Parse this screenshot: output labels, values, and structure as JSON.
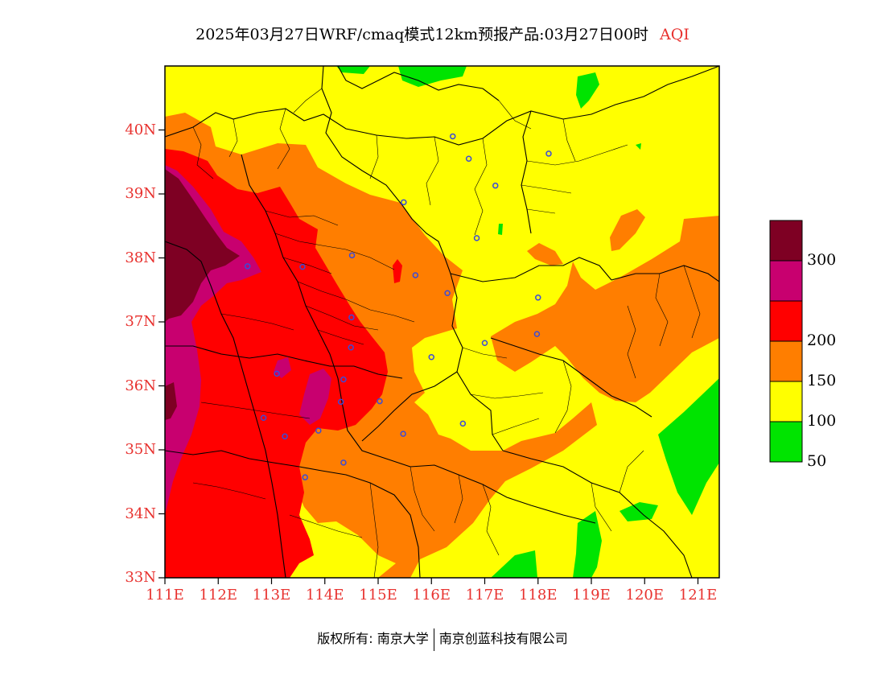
{
  "title": {
    "main": "2025年03月27日WRF/cmaq模式12km预报产品:03月27日00时",
    "variable": "AQI"
  },
  "map": {
    "lat_min": 33,
    "lat_max": 41,
    "lon_min": 111,
    "lon_max": 121.4,
    "lat_labels": [
      "40N",
      "39N",
      "38N",
      "37N",
      "36N",
      "35N",
      "34N",
      "33N"
    ],
    "lon_labels": [
      "111E",
      "112E",
      "113E",
      "114E",
      "115E",
      "116E",
      "117E",
      "118E",
      "119E",
      "120E",
      "121E"
    ],
    "colors": {
      "good": "#00e400",
      "moderate": "#ffff00",
      "usg": "#ff7e00",
      "unhealthy": "#ff0000",
      "very_unhealthy": "#c8006f",
      "hazardous": "#7e0023",
      "city_marker": "#3b4bd8",
      "label": "#e8322f"
    },
    "cities": [
      {
        "lon": 116.4,
        "lat": 39.9
      },
      {
        "lon": 116.7,
        "lat": 39.55
      },
      {
        "lon": 117.2,
        "lat": 39.13
      },
      {
        "lon": 118.2,
        "lat": 39.63
      },
      {
        "lon": 115.48,
        "lat": 38.87
      },
      {
        "lon": 116.85,
        "lat": 38.31
      },
      {
        "lon": 112.55,
        "lat": 37.87
      },
      {
        "lon": 113.58,
        "lat": 37.86
      },
      {
        "lon": 114.51,
        "lat": 38.04
      },
      {
        "lon": 115.7,
        "lat": 37.73
      },
      {
        "lon": 116.3,
        "lat": 37.45
      },
      {
        "lon": 118.0,
        "lat": 37.38
      },
      {
        "lon": 114.5,
        "lat": 37.07
      },
      {
        "lon": 114.49,
        "lat": 36.6
      },
      {
        "lon": 117.0,
        "lat": 36.67
      },
      {
        "lon": 117.98,
        "lat": 36.81
      },
      {
        "lon": 116.0,
        "lat": 36.45
      },
      {
        "lon": 113.1,
        "lat": 36.19
      },
      {
        "lon": 114.35,
        "lat": 36.1
      },
      {
        "lon": 114.3,
        "lat": 35.75
      },
      {
        "lon": 115.03,
        "lat": 35.76
      },
      {
        "lon": 112.85,
        "lat": 35.5
      },
      {
        "lon": 113.88,
        "lat": 35.3
      },
      {
        "lon": 113.25,
        "lat": 35.21
      },
      {
        "lon": 115.47,
        "lat": 35.25
      },
      {
        "lon": 116.59,
        "lat": 35.41
      },
      {
        "lon": 114.35,
        "lat": 34.8
      },
      {
        "lon": 113.63,
        "lat": 34.57
      }
    ]
  },
  "legend": {
    "levels": [
      {
        "label": "300",
        "color": "#7e0023"
      },
      {
        "label": "",
        "color": "#c8006f"
      },
      {
        "label": "200",
        "color": "#ff0000"
      },
      {
        "label": "150",
        "color": "#ff7e00"
      },
      {
        "label": "100",
        "color": "#ffff00"
      },
      {
        "label": "50",
        "color": "#00e400"
      }
    ]
  },
  "footer": {
    "left": "版权所有: 南京大学",
    "right": "南京创蓝科技有限公司"
  }
}
